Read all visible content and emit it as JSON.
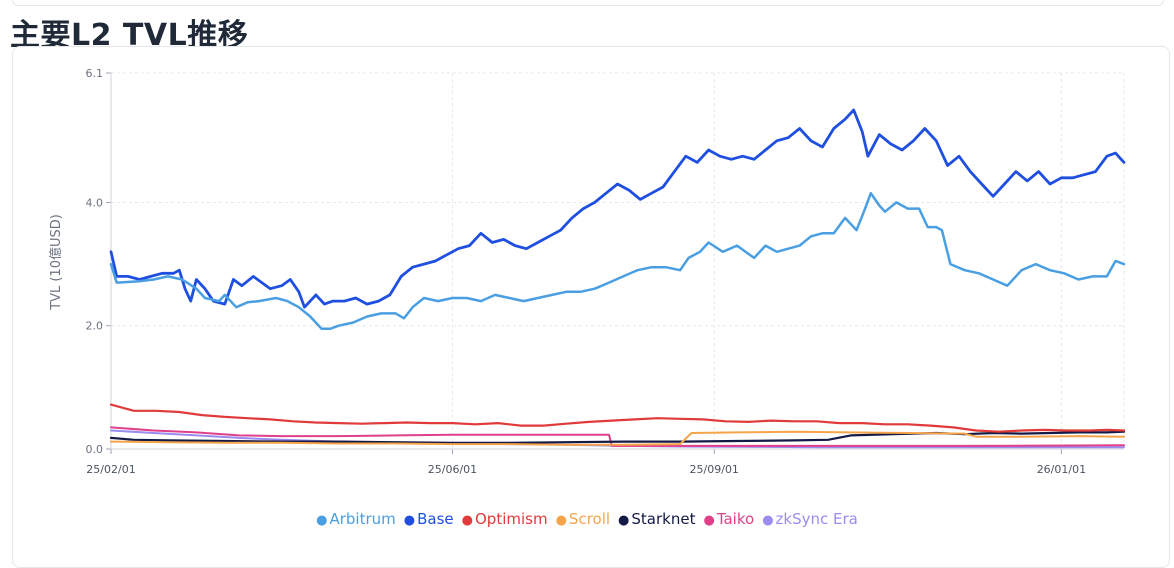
{
  "page_title": "主要L2 TVL推移",
  "chart_data": {
    "type": "line",
    "ylabel": "TVL (10億USD)",
    "xlabel": "",
    "ylim": [
      0,
      6.1
    ],
    "yticks": [
      "0.0",
      "2.0",
      "4.0",
      "6.1"
    ],
    "ytick_values": [
      0,
      2.0,
      4.0,
      6.1
    ],
    "xticks": [
      "25/02/01",
      "25/06/01",
      "25/09/01",
      "26/01/01"
    ],
    "xtick_days": [
      0,
      120,
      212,
      334
    ],
    "x_range_days": [
      0,
      343
    ],
    "grid": true,
    "legend": "bottom-center",
    "series": [
      {
        "name": "Arbitrum",
        "color": "#4a9fe3",
        "stroke": 2.5,
        "points": [
          [
            0,
            3.0
          ],
          [
            2,
            2.7
          ],
          [
            10,
            2.72
          ],
          [
            15,
            2.75
          ],
          [
            20,
            2.8
          ],
          [
            25,
            2.75
          ],
          [
            30,
            2.6
          ],
          [
            33,
            2.45
          ],
          [
            38,
            2.4
          ],
          [
            40,
            2.5
          ],
          [
            44,
            2.3
          ],
          [
            48,
            2.38
          ],
          [
            52,
            2.4
          ],
          [
            58,
            2.45
          ],
          [
            62,
            2.4
          ],
          [
            66,
            2.3
          ],
          [
            70,
            2.15
          ],
          [
            74,
            1.95
          ],
          [
            77,
            1.95
          ],
          [
            80,
            2.0
          ],
          [
            85,
            2.05
          ],
          [
            90,
            2.15
          ],
          [
            95,
            2.2
          ],
          [
            100,
            2.2
          ],
          [
            103,
            2.12
          ],
          [
            106,
            2.3
          ],
          [
            110,
            2.45
          ],
          [
            115,
            2.4
          ],
          [
            120,
            2.45
          ],
          [
            125,
            2.45
          ],
          [
            130,
            2.4
          ],
          [
            135,
            2.5
          ],
          [
            140,
            2.45
          ],
          [
            145,
            2.4
          ],
          [
            150,
            2.45
          ],
          [
            155,
            2.5
          ],
          [
            160,
            2.55
          ],
          [
            165,
            2.55
          ],
          [
            170,
            2.6
          ],
          [
            175,
            2.7
          ],
          [
            180,
            2.8
          ],
          [
            185,
            2.9
          ],
          [
            190,
            2.95
          ],
          [
            195,
            2.95
          ],
          [
            200,
            2.9
          ],
          [
            203,
            3.1
          ],
          [
            207,
            3.2
          ],
          [
            210,
            3.35
          ],
          [
            215,
            3.2
          ],
          [
            220,
            3.3
          ],
          [
            223,
            3.2
          ],
          [
            226,
            3.1
          ],
          [
            230,
            3.3
          ],
          [
            234,
            3.2
          ],
          [
            238,
            3.25
          ],
          [
            242,
            3.3
          ],
          [
            246,
            3.45
          ],
          [
            250,
            3.5
          ],
          [
            254,
            3.5
          ],
          [
            258,
            3.75
          ],
          [
            262,
            3.55
          ],
          [
            265,
            3.9
          ],
          [
            267,
            4.15
          ],
          [
            270,
            3.95
          ],
          [
            272,
            3.85
          ],
          [
            276,
            4.0
          ],
          [
            280,
            3.9
          ],
          [
            284,
            3.9
          ],
          [
            287,
            3.6
          ],
          [
            290,
            3.6
          ],
          [
            292,
            3.55
          ],
          [
            295,
            3.0
          ],
          [
            300,
            2.9
          ],
          [
            305,
            2.85
          ],
          [
            310,
            2.75
          ],
          [
            315,
            2.65
          ],
          [
            320,
            2.9
          ],
          [
            325,
            3.0
          ],
          [
            330,
            2.9
          ],
          [
            335,
            2.85
          ],
          [
            340,
            2.75
          ],
          [
            345,
            2.8
          ],
          [
            350,
            2.8
          ],
          [
            353,
            3.05
          ],
          [
            356,
            3.0
          ]
        ]
      },
      {
        "name": "Base",
        "color": "#1f4fe0",
        "stroke": 2.8,
        "points": [
          [
            0,
            3.2
          ],
          [
            2,
            2.8
          ],
          [
            6,
            2.8
          ],
          [
            10,
            2.75
          ],
          [
            14,
            2.8
          ],
          [
            18,
            2.85
          ],
          [
            22,
            2.85
          ],
          [
            24,
            2.9
          ],
          [
            26,
            2.6
          ],
          [
            28,
            2.4
          ],
          [
            30,
            2.75
          ],
          [
            33,
            2.6
          ],
          [
            36,
            2.4
          ],
          [
            40,
            2.35
          ],
          [
            43,
            2.75
          ],
          [
            46,
            2.65
          ],
          [
            50,
            2.8
          ],
          [
            53,
            2.7
          ],
          [
            56,
            2.6
          ],
          [
            60,
            2.65
          ],
          [
            63,
            2.75
          ],
          [
            66,
            2.55
          ],
          [
            68,
            2.3
          ],
          [
            72,
            2.5
          ],
          [
            75,
            2.35
          ],
          [
            78,
            2.4
          ],
          [
            82,
            2.4
          ],
          [
            86,
            2.45
          ],
          [
            90,
            2.35
          ],
          [
            94,
            2.4
          ],
          [
            98,
            2.5
          ],
          [
            102,
            2.8
          ],
          [
            106,
            2.95
          ],
          [
            110,
            3.0
          ],
          [
            114,
            3.05
          ],
          [
            118,
            3.15
          ],
          [
            122,
            3.25
          ],
          [
            126,
            3.3
          ],
          [
            130,
            3.5
          ],
          [
            134,
            3.35
          ],
          [
            138,
            3.4
          ],
          [
            142,
            3.3
          ],
          [
            146,
            3.25
          ],
          [
            150,
            3.35
          ],
          [
            154,
            3.45
          ],
          [
            158,
            3.55
          ],
          [
            162,
            3.75
          ],
          [
            166,
            3.9
          ],
          [
            170,
            4.0
          ],
          [
            174,
            4.15
          ],
          [
            178,
            4.3
          ],
          [
            182,
            4.2
          ],
          [
            186,
            4.05
          ],
          [
            190,
            4.15
          ],
          [
            194,
            4.25
          ],
          [
            198,
            4.5
          ],
          [
            202,
            4.75
          ],
          [
            206,
            4.65
          ],
          [
            210,
            4.85
          ],
          [
            214,
            4.75
          ],
          [
            218,
            4.7
          ],
          [
            222,
            4.75
          ],
          [
            226,
            4.7
          ],
          [
            230,
            4.85
          ],
          [
            234,
            5.0
          ],
          [
            238,
            5.05
          ],
          [
            242,
            5.2
          ],
          [
            246,
            5.0
          ],
          [
            250,
            4.9
          ],
          [
            254,
            5.2
          ],
          [
            258,
            5.35
          ],
          [
            261,
            5.5
          ],
          [
            264,
            5.15
          ],
          [
            266,
            4.75
          ],
          [
            270,
            5.1
          ],
          [
            274,
            4.95
          ],
          [
            278,
            4.85
          ],
          [
            282,
            5.0
          ],
          [
            286,
            5.2
          ],
          [
            290,
            5.0
          ],
          [
            294,
            4.6
          ],
          [
            298,
            4.75
          ],
          [
            302,
            4.5
          ],
          [
            306,
            4.3
          ],
          [
            310,
            4.1
          ],
          [
            314,
            4.3
          ],
          [
            318,
            4.5
          ],
          [
            322,
            4.35
          ],
          [
            326,
            4.5
          ],
          [
            330,
            4.3
          ],
          [
            334,
            4.4
          ],
          [
            338,
            4.4
          ],
          [
            342,
            4.45
          ],
          [
            346,
            4.5
          ],
          [
            350,
            4.75
          ],
          [
            353,
            4.8
          ],
          [
            356,
            4.65
          ]
        ]
      },
      {
        "name": "Optimism",
        "color": "#e03a3a",
        "stroke": 2.2,
        "points": [
          [
            0,
            0.72
          ],
          [
            8,
            0.62
          ],
          [
            16,
            0.62
          ],
          [
            24,
            0.6
          ],
          [
            32,
            0.55
          ],
          [
            40,
            0.52
          ],
          [
            48,
            0.5
          ],
          [
            56,
            0.48
          ],
          [
            64,
            0.45
          ],
          [
            72,
            0.43
          ],
          [
            80,
            0.42
          ],
          [
            88,
            0.41
          ],
          [
            96,
            0.42
          ],
          [
            104,
            0.43
          ],
          [
            112,
            0.42
          ],
          [
            120,
            0.42
          ],
          [
            128,
            0.4
          ],
          [
            136,
            0.42
          ],
          [
            144,
            0.38
          ],
          [
            152,
            0.38
          ],
          [
            160,
            0.41
          ],
          [
            168,
            0.44
          ],
          [
            176,
            0.46
          ],
          [
            184,
            0.48
          ],
          [
            192,
            0.5
          ],
          [
            200,
            0.49
          ],
          [
            208,
            0.48
          ],
          [
            216,
            0.45
          ],
          [
            224,
            0.44
          ],
          [
            232,
            0.46
          ],
          [
            240,
            0.45
          ],
          [
            248,
            0.45
          ],
          [
            256,
            0.42
          ],
          [
            264,
            0.42
          ],
          [
            272,
            0.4
          ],
          [
            280,
            0.4
          ],
          [
            288,
            0.38
          ],
          [
            296,
            0.35
          ],
          [
            304,
            0.3
          ],
          [
            312,
            0.28
          ],
          [
            320,
            0.3
          ],
          [
            328,
            0.31
          ],
          [
            336,
            0.3
          ],
          [
            344,
            0.3
          ],
          [
            350,
            0.31
          ],
          [
            356,
            0.3
          ]
        ]
      },
      {
        "name": "Scroll",
        "color": "#f5a44a",
        "stroke": 2,
        "points": [
          [
            0,
            0.12
          ],
          [
            20,
            0.11
          ],
          [
            40,
            0.1
          ],
          [
            60,
            0.1
          ],
          [
            80,
            0.09
          ],
          [
            100,
            0.09
          ],
          [
            120,
            0.08
          ],
          [
            140,
            0.08
          ],
          [
            160,
            0.07
          ],
          [
            180,
            0.07
          ],
          [
            200,
            0.08
          ],
          [
            204,
            0.26
          ],
          [
            220,
            0.27
          ],
          [
            240,
            0.28
          ],
          [
            260,
            0.27
          ],
          [
            280,
            0.26
          ],
          [
            300,
            0.25
          ],
          [
            304,
            0.2
          ],
          [
            320,
            0.2
          ],
          [
            340,
            0.21
          ],
          [
            356,
            0.2
          ]
        ]
      },
      {
        "name": "Starknet",
        "color": "#141a46",
        "stroke": 2.2,
        "points": [
          [
            0,
            0.18
          ],
          [
            8,
            0.15
          ],
          [
            20,
            0.14
          ],
          [
            40,
            0.13
          ],
          [
            60,
            0.12
          ],
          [
            80,
            0.12
          ],
          [
            100,
            0.11
          ],
          [
            120,
            0.1
          ],
          [
            140,
            0.1
          ],
          [
            160,
            0.11
          ],
          [
            180,
            0.12
          ],
          [
            200,
            0.12
          ],
          [
            220,
            0.13
          ],
          [
            240,
            0.14
          ],
          [
            252,
            0.15
          ],
          [
            260,
            0.22
          ],
          [
            275,
            0.24
          ],
          [
            290,
            0.26
          ],
          [
            300,
            0.24
          ],
          [
            310,
            0.26
          ],
          [
            320,
            0.25
          ],
          [
            330,
            0.26
          ],
          [
            340,
            0.27
          ],
          [
            350,
            0.27
          ],
          [
            356,
            0.28
          ]
        ]
      },
      {
        "name": "Taiko",
        "color": "#e0408a",
        "stroke": 2,
        "points": [
          [
            0,
            0.35
          ],
          [
            15,
            0.3
          ],
          [
            30,
            0.27
          ],
          [
            45,
            0.22
          ],
          [
            60,
            0.21
          ],
          [
            80,
            0.21
          ],
          [
            100,
            0.22
          ],
          [
            120,
            0.23
          ],
          [
            140,
            0.23
          ],
          [
            160,
            0.23
          ],
          [
            175,
            0.23
          ],
          [
            176,
            0.05
          ],
          [
            200,
            0.05
          ],
          [
            250,
            0.05
          ],
          [
            300,
            0.05
          ],
          [
            356,
            0.06
          ]
        ]
      },
      {
        "name": "zkSync Era",
        "color": "#9b8cf0",
        "stroke": 2,
        "points": [
          [
            0,
            0.3
          ],
          [
            15,
            0.26
          ],
          [
            30,
            0.22
          ],
          [
            45,
            0.18
          ],
          [
            60,
            0.15
          ],
          [
            80,
            0.12
          ],
          [
            100,
            0.1
          ],
          [
            120,
            0.09
          ],
          [
            140,
            0.08
          ],
          [
            160,
            0.07
          ],
          [
            180,
            0.05
          ],
          [
            200,
            0.04
          ],
          [
            250,
            0.03
          ],
          [
            300,
            0.03
          ],
          [
            356,
            0.03
          ]
        ]
      }
    ]
  }
}
